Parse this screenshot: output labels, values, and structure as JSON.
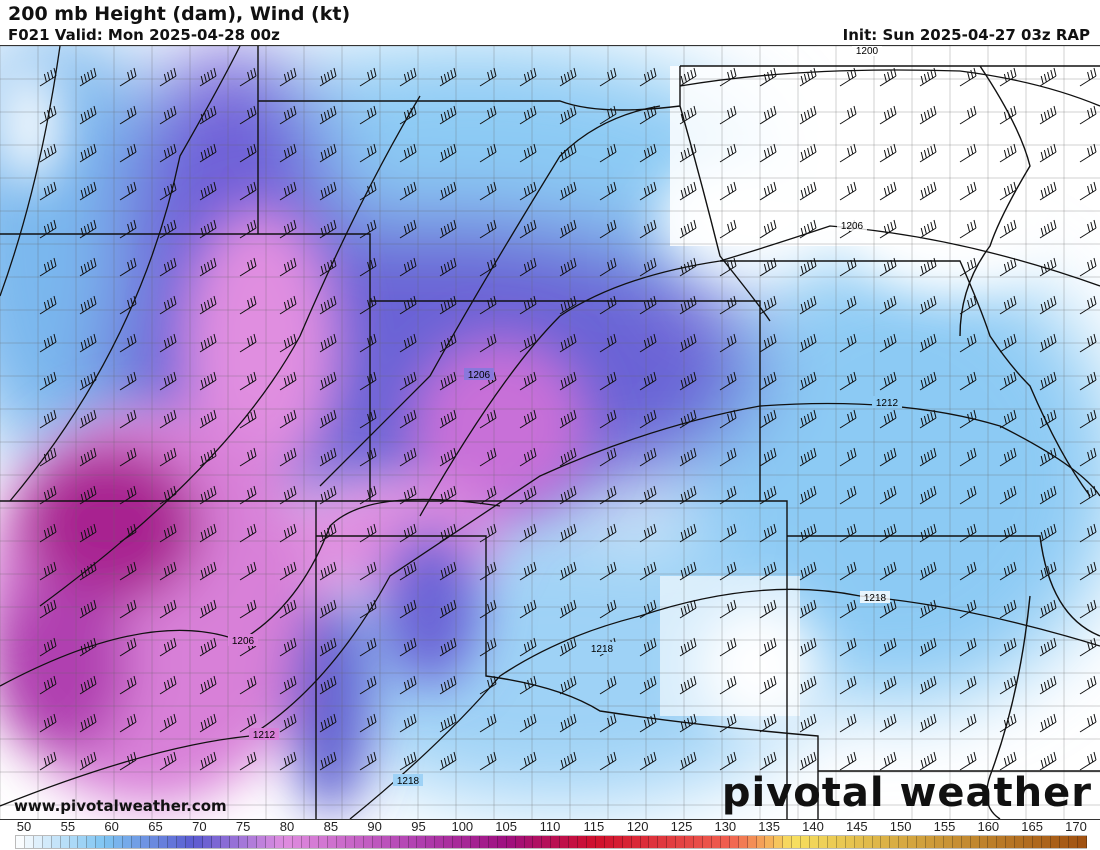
{
  "header": {
    "title": "200 mb Height (dam), Wind (kt)",
    "valid": "F021 Valid: Mon 2025-04-28 00z",
    "init": "Init: Sun 2025-04-27 03z RAP"
  },
  "footer": {
    "website": "www.pivotalweather.com",
    "brand": "pivotal weather"
  },
  "contours": [
    {
      "label": "1200"
    },
    {
      "label": "1206"
    },
    {
      "label": "1206"
    },
    {
      "label": "1206"
    },
    {
      "label": "1212"
    },
    {
      "label": "1212"
    },
    {
      "label": "1218"
    },
    {
      "label": "1218"
    },
    {
      "label": "1218"
    }
  ],
  "colorbar": {
    "units": "kt",
    "min": 50,
    "max": 170,
    "tick_labels": [
      "50",
      "55",
      "60",
      "65",
      "70",
      "75",
      "80",
      "85",
      "90",
      "95",
      "100",
      "105",
      "110",
      "115",
      "120",
      "125",
      "130",
      "135",
      "140",
      "145",
      "150",
      "155",
      "160",
      "165",
      "170"
    ],
    "color_stops": [
      {
        "value": 50,
        "color": "#ffffff"
      },
      {
        "value": 60,
        "color": "#7ec4f2"
      },
      {
        "value": 70,
        "color": "#5a5ad0"
      },
      {
        "value": 80,
        "color": "#e08ee0"
      },
      {
        "value": 95,
        "color": "#b040b0"
      },
      {
        "value": 105,
        "color": "#9e1080"
      },
      {
        "value": 115,
        "color": "#d0102c"
      },
      {
        "value": 130,
        "color": "#f06050"
      },
      {
        "value": 137,
        "color": "#f8e060"
      },
      {
        "value": 170,
        "color": "#a05010"
      }
    ]
  }
}
